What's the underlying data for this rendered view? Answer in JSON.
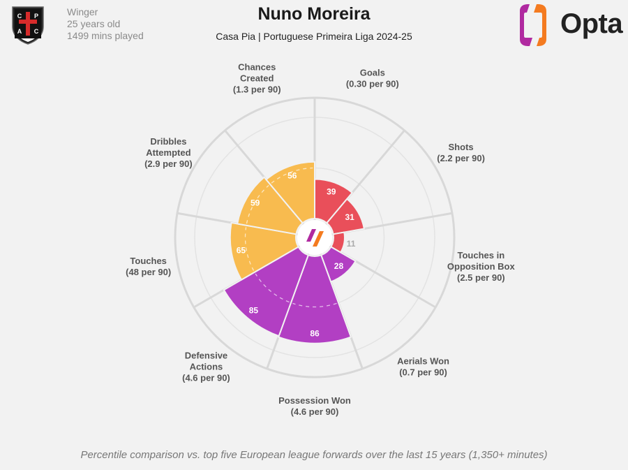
{
  "header": {
    "title": "Nuno Moreira",
    "subtitle": "Casa Pia | Portuguese Primeira Liga 2024-25",
    "position": "Winger",
    "age": "25 years old",
    "minutes": "1499 mins played",
    "crest_letters": [
      "C",
      "P",
      "A",
      "C"
    ],
    "brand": "Opta"
  },
  "footnote": "Percentile comparison vs. top five European league forwards over the last 15 years (1,350+ minutes)",
  "colors": {
    "background": "#f2f2f2",
    "attacking": "#e94f5a",
    "possession": "#f8bb4f",
    "defending": "#b23fc3",
    "gridline": "#d8d8d8",
    "opta_magenta": "#b02aa0",
    "opta_orange": "#f47b20"
  },
  "chart_data": {
    "type": "polar-bar",
    "title": "Nuno Moreira",
    "rlim": [
      0,
      100
    ],
    "metrics": [
      {
        "name": "Goals",
        "detail": "(0.30 per 90)",
        "percentile": 39,
        "group": "attacking"
      },
      {
        "name": "Shots",
        "detail": "(2.2 per 90)",
        "percentile": 31,
        "group": "attacking"
      },
      {
        "name": "Touches in Opposition Box",
        "detail": "(2.5 per 90)",
        "percentile": 11,
        "group": "attacking"
      },
      {
        "name": "Aerials Won",
        "detail": "(0.7 per 90)",
        "percentile": 28,
        "group": "defending"
      },
      {
        "name": "Possession Won",
        "detail": "(4.6 per 90)",
        "percentile": 86,
        "group": "defending"
      },
      {
        "name": "Defensive Actions",
        "detail": "(4.6 per 90)",
        "percentile": 85,
        "group": "defending"
      },
      {
        "name": "Touches",
        "detail": "(48 per 90)",
        "percentile": 65,
        "group": "possession"
      },
      {
        "name": "Dribbles Attempted",
        "detail": "(2.9 per 90)",
        "percentile": 59,
        "group": "possession"
      },
      {
        "name": "Chances Created",
        "detail": "(1.3 per 90)",
        "percentile": 56,
        "group": "possession"
      }
    ]
  }
}
